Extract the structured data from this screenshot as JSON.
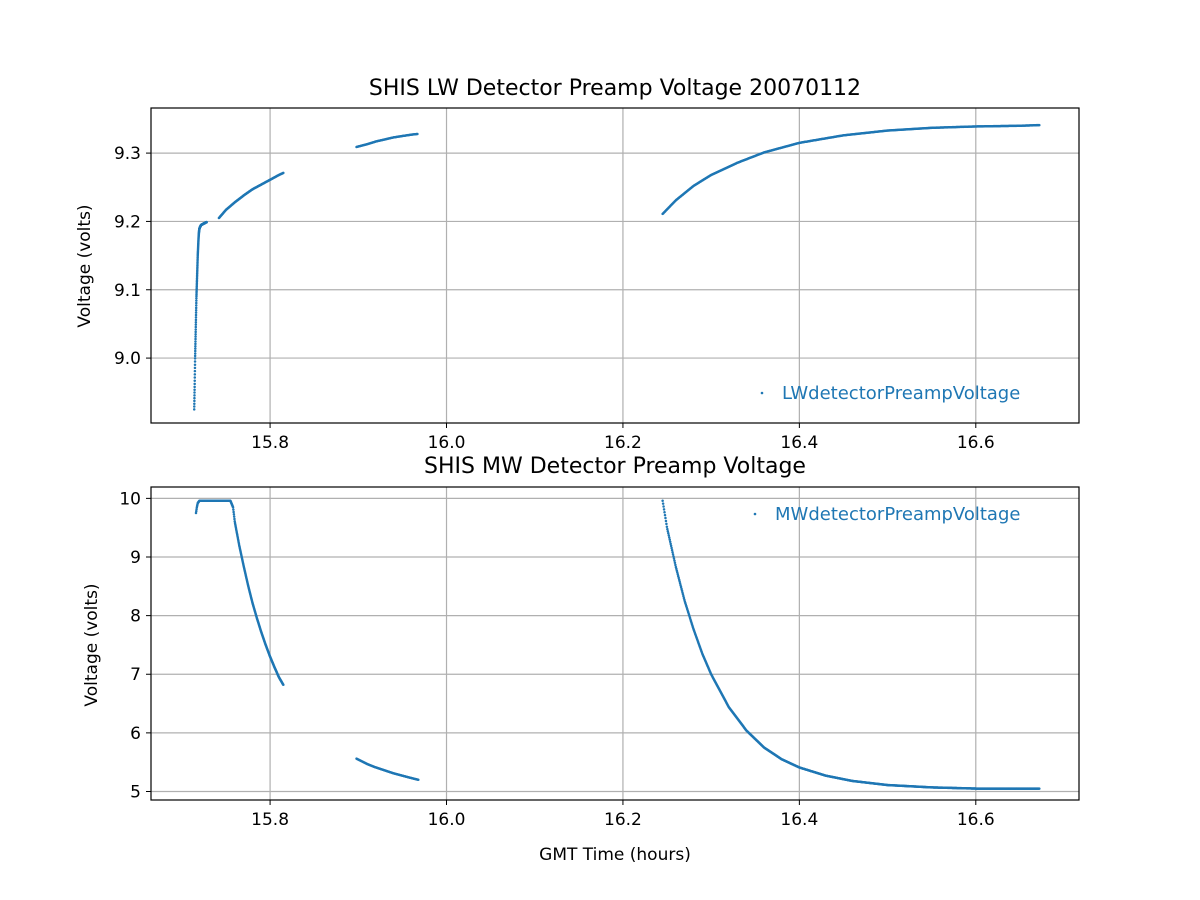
{
  "chart_data": [
    {
      "type": "scatter",
      "title": "SHIS LW Detector Preamp Voltage 20070112",
      "xlabel": "",
      "ylabel": "Voltage (volts)",
      "xlim": [
        15.665,
        16.717
      ],
      "ylim": [
        8.905,
        9.366
      ],
      "xticks": [
        15.8,
        16.0,
        16.2,
        16.4,
        16.6
      ],
      "xtick_labels": [
        "15.8",
        "16.0",
        "16.2",
        "16.4",
        "16.6"
      ],
      "yticks": [
        9.0,
        9.1,
        9.2,
        9.3
      ],
      "ytick_labels": [
        "9.0",
        "9.1",
        "9.2",
        "9.3"
      ],
      "grid": true,
      "legend_position": "lower-right",
      "series": [
        {
          "name": "LWdetectorPreampVoltage",
          "color": "#1f77b4",
          "segments": [
            {
              "x": [
                15.714,
                15.7145,
                15.715,
                15.7155,
                15.716,
                15.7165,
                15.717,
                15.7175,
                15.718,
                15.7185,
                15.719,
                15.7195,
                15.72,
                15.721,
                15.722,
                15.7235,
                15.725,
                15.7265,
                15.728
              ],
              "y": [
                8.925,
                8.96,
                9.0,
                9.03,
                9.06,
                9.09,
                9.11,
                9.13,
                9.15,
                9.165,
                9.178,
                9.186,
                9.19,
                9.193,
                9.195,
                9.196,
                9.197,
                9.198,
                9.199
              ]
            },
            {
              "x": [
                15.742,
                15.75,
                15.76,
                15.77,
                15.78,
                15.79,
                15.8,
                15.81,
                15.815
              ],
              "y": [
                9.205,
                9.217,
                9.228,
                9.238,
                9.247,
                9.254,
                9.261,
                9.268,
                9.271
              ]
            },
            {
              "x": [
                15.898,
                15.91,
                15.92,
                15.93,
                15.94,
                15.95,
                15.96,
                15.967
              ],
              "y": [
                9.309,
                9.313,
                9.317,
                9.32,
                9.323,
                9.325,
                9.327,
                9.328
              ]
            },
            {
              "x": [
                16.245,
                16.26,
                16.28,
                16.3,
                16.33,
                16.36,
                16.4,
                16.45,
                16.5,
                16.55,
                16.6,
                16.65,
                16.672
              ],
              "y": [
                9.211,
                9.231,
                9.252,
                9.268,
                9.286,
                9.301,
                9.315,
                9.326,
                9.333,
                9.337,
                9.339,
                9.34,
                9.341
              ]
            }
          ]
        }
      ]
    },
    {
      "type": "scatter",
      "title": "SHIS MW Detector Preamp Voltage",
      "xlabel": "GMT Time (hours)",
      "ylabel": "Voltage (volts)",
      "xlim": [
        15.665,
        16.717
      ],
      "ylim": [
        4.855,
        10.194
      ],
      "xticks": [
        15.8,
        16.0,
        16.2,
        16.4,
        16.6
      ],
      "xtick_labels": [
        "15.8",
        "16.0",
        "16.2",
        "16.4",
        "16.6"
      ],
      "yticks": [
        5,
        6,
        7,
        8,
        9,
        10
      ],
      "ytick_labels": [
        "5",
        "6",
        "7",
        "8",
        "9",
        "10"
      ],
      "grid": true,
      "legend_position": "upper-right",
      "series": [
        {
          "name": "MWdetectorPreampVoltage",
          "color": "#1f77b4",
          "segments": [
            {
              "x": [
                15.716,
                15.717,
                15.718,
                15.72,
                15.725,
                15.73,
                15.735,
                15.74,
                15.745,
                15.75,
                15.755,
                15.758,
                15.76,
                15.765,
                15.77,
                15.775,
                15.78,
                15.785,
                15.79,
                15.795,
                15.8,
                15.805,
                15.81,
                15.815
              ],
              "y": [
                9.75,
                9.85,
                9.92,
                9.96,
                9.96,
                9.96,
                9.96,
                9.96,
                9.96,
                9.96,
                9.96,
                9.85,
                9.6,
                9.2,
                8.85,
                8.52,
                8.22,
                7.96,
                7.72,
                7.5,
                7.3,
                7.12,
                6.95,
                6.82
              ]
            },
            {
              "x": [
                15.898,
                15.91,
                15.92,
                15.93,
                15.94,
                15.95,
                15.96,
                15.968
              ],
              "y": [
                5.56,
                5.47,
                5.41,
                5.36,
                5.31,
                5.27,
                5.23,
                5.2
              ]
            },
            {
              "x": [
                16.245,
                16.25,
                16.26,
                16.27,
                16.28,
                16.29,
                16.3,
                16.32,
                16.34,
                16.36,
                16.38,
                16.4,
                16.43,
                16.46,
                16.5,
                16.55,
                16.6,
                16.65,
                16.672
              ],
              "y": [
                9.96,
                9.5,
                8.83,
                8.25,
                7.77,
                7.35,
                7.0,
                6.44,
                6.04,
                5.75,
                5.55,
                5.41,
                5.27,
                5.18,
                5.11,
                5.07,
                5.05,
                5.05,
                5.05
              ]
            }
          ]
        }
      ]
    }
  ]
}
